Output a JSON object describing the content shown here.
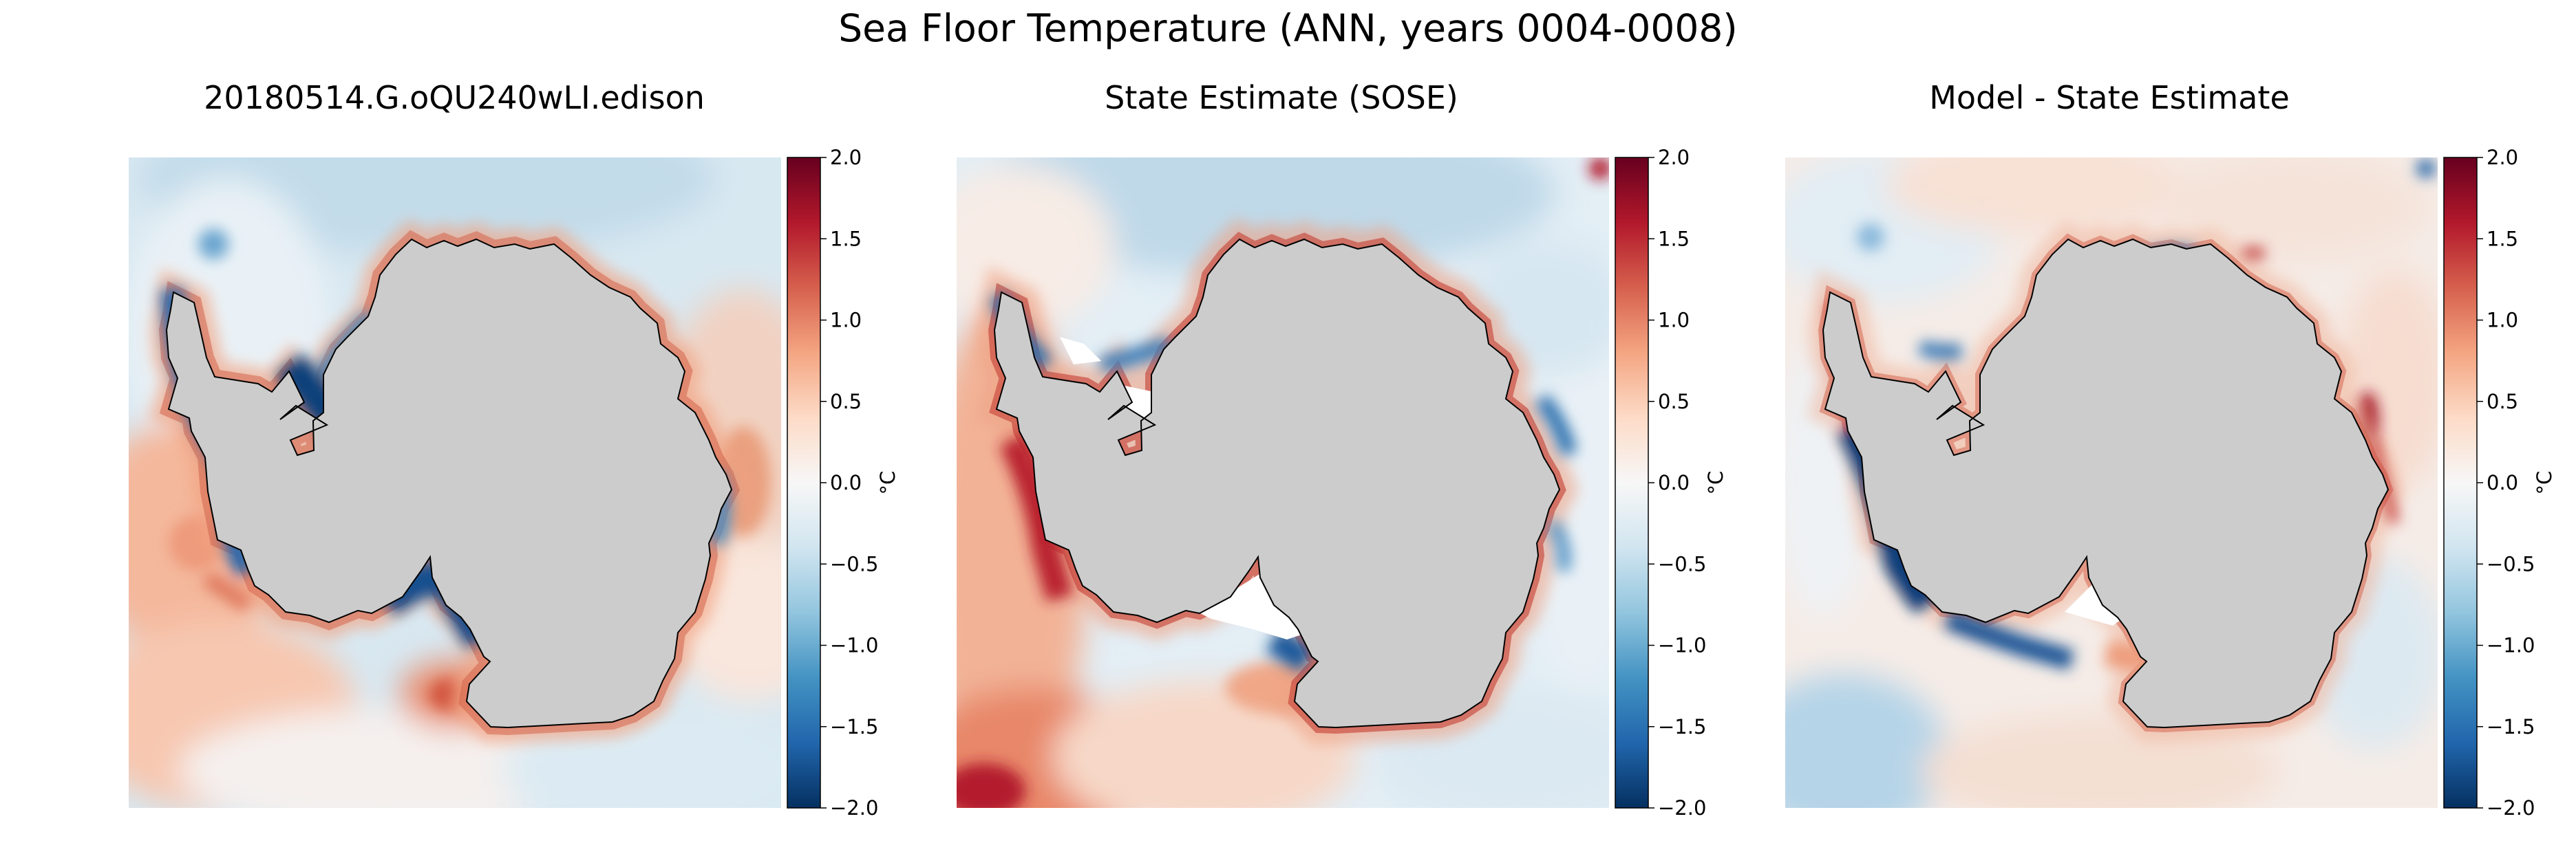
{
  "figure": {
    "title": "Sea Floor Temperature (ANN, years 0004-0008)"
  },
  "chart_data": [
    {
      "type": "heatmap",
      "title": "20180514.G.oQU240wLI.edison",
      "colorbar": {
        "label": "°C",
        "vmin": -2.0,
        "vmax": 2.0,
        "ticks": [
          2.0,
          1.5,
          1.0,
          0.5,
          0.0,
          -0.5,
          -1.0,
          -1.5,
          -2.0
        ],
        "tick_labels": [
          "2.0",
          "1.5",
          "1.0",
          "0.5",
          "0.0",
          "−0.5",
          "−1.0",
          "−1.5",
          "−2.0"
        ],
        "colormap": "RdBu_r"
      },
      "land_color": "#cccccc"
    },
    {
      "type": "heatmap",
      "title": "State Estimate (SOSE)",
      "colorbar": {
        "label": "°C",
        "vmin": -2.0,
        "vmax": 2.0,
        "ticks": [
          2.0,
          1.5,
          1.0,
          0.5,
          0.0,
          -0.5,
          -1.0,
          -1.5,
          -2.0
        ],
        "tick_labels": [
          "2.0",
          "1.5",
          "1.0",
          "0.5",
          "0.0",
          "−0.5",
          "−1.0",
          "−1.5",
          "−2.0"
        ],
        "colormap": "RdBu_r"
      },
      "land_color": "#cccccc"
    },
    {
      "type": "heatmap",
      "title": "Model - State Estimate",
      "colorbar": {
        "label": "°C",
        "vmin": -2.0,
        "vmax": 2.0,
        "ticks": [
          2.0,
          1.5,
          1.0,
          0.5,
          0.0,
          -0.5,
          -1.0,
          -1.5,
          -2.0
        ],
        "tick_labels": [
          "2.0",
          "1.5",
          "1.0",
          "0.5",
          "0.0",
          "−0.5",
          "−1.0",
          "−1.5",
          "−2.0"
        ],
        "colormap": "RdBu_r"
      },
      "land_color": "#cccccc"
    }
  ]
}
